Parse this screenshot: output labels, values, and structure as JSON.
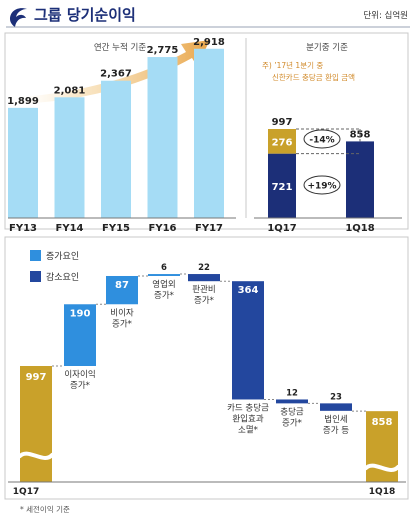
{
  "header": {
    "title": "그룹 당기순이익",
    "unit": "단위: 십억원",
    "logo_icon": "shinhan-logo-icon"
  },
  "footnote": "* 세전이익 기준",
  "colors": {
    "light_blue": "#a5dcf5",
    "gold": "#c9a12a",
    "navy": "#1c2f78",
    "mid_blue": "#2f8fde",
    "dark_blue": "#23479e",
    "arrow_orange": "#e9a64a",
    "note_orange": "#d18a2a",
    "title_navy": "#1c2f78"
  },
  "chart_data": [
    {
      "type": "bar",
      "subtitle": "연간 누적 기준",
      "categories": [
        "FY13",
        "FY14",
        "FY15",
        "FY16",
        "FY17"
      ],
      "values": [
        1899,
        2081,
        2367,
        2775,
        2918
      ],
      "value_labels": [
        "1,899",
        "2,081",
        "2,367",
        "2,775",
        "2,918"
      ],
      "xlabel": "",
      "ylabel": "",
      "ylim": [
        0,
        3000
      ],
      "grid": false,
      "legend": "none"
    },
    {
      "type": "stacked_bar",
      "subtitle": "분기중 기준",
      "note": "주) ’17년 1분기 중 신한카드 충당금 환입 금액",
      "categories": [
        "1Q17",
        "1Q18"
      ],
      "series": [
        {
          "values": [
            721,
            858
          ]
        },
        {
          "values": [
            276,
            0
          ]
        }
      ],
      "totals": [
        997,
        858
      ],
      "annotations": [
        "-14%",
        "+19%"
      ],
      "ylim": [
        0,
        1100
      ],
      "legend": "none"
    },
    {
      "type": "waterfall",
      "legend_items": [
        "증가요인",
        "감소요인"
      ],
      "start": {
        "label": "1Q17",
        "value": 997
      },
      "end": {
        "label": "1Q18",
        "value": 858
      },
      "steps": [
        {
          "label": "이자이익 증가*",
          "value": 190,
          "kind": "increase"
        },
        {
          "label": "비이자 증가*",
          "value": 87,
          "kind": "increase"
        },
        {
          "label": "영업외 증가*",
          "value": 6,
          "kind": "increase"
        },
        {
          "label": "판관비 증가*",
          "value": 22,
          "kind": "decrease"
        },
        {
          "label": "카드 충당금 환입효과 소멸*",
          "value": 364,
          "kind": "decrease"
        },
        {
          "label": "충당금 증가*",
          "value": 12,
          "kind": "decrease"
        },
        {
          "label": "법인세 증가 등",
          "value": 23,
          "kind": "decrease"
        }
      ],
      "ylim": [
        640,
        1300
      ]
    }
  ]
}
